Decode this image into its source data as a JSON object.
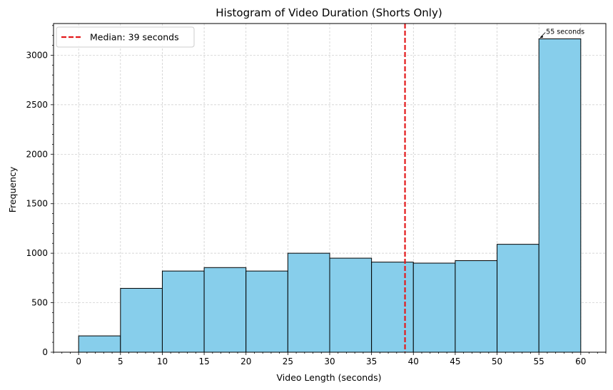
{
  "chart_data": {
    "type": "bar",
    "title": "Histogram of Video Duration (Shorts Only)",
    "xlabel": "Video Length (seconds)",
    "ylabel": "Frequency",
    "bin_edges": [
      0,
      5,
      10,
      15,
      20,
      25,
      30,
      35,
      40,
      45,
      50,
      55,
      60
    ],
    "values": [
      165,
      645,
      820,
      855,
      820,
      1000,
      950,
      910,
      900,
      925,
      1090,
      3165
    ],
    "xlim": [
      -3,
      63
    ],
    "ylim": [
      0,
      3320
    ],
    "xticks": [
      0,
      5,
      10,
      15,
      20,
      25,
      30,
      35,
      40,
      45,
      50,
      55,
      60
    ],
    "xtick_labels": [
      "0",
      "5",
      "10",
      "15",
      "20",
      "25",
      "30",
      "35",
      "40",
      "45",
      "50",
      "55",
      "60"
    ],
    "yticks": [
      0,
      500,
      1000,
      1500,
      2000,
      2500,
      3000
    ],
    "ytick_labels": [
      "0",
      "500",
      "1000",
      "1500",
      "2000",
      "2500",
      "3000"
    ],
    "grid": true,
    "bar_color": "#87ceeb",
    "edge_color": "#000000",
    "median": {
      "value": 39,
      "label": "Median: 39 seconds",
      "color": "#e31a1c"
    },
    "annotation": {
      "text": "55 seconds",
      "x": 55,
      "y": 3165
    },
    "legend": {
      "position": "top-left",
      "entries": [
        "Median: 39 seconds"
      ]
    }
  }
}
